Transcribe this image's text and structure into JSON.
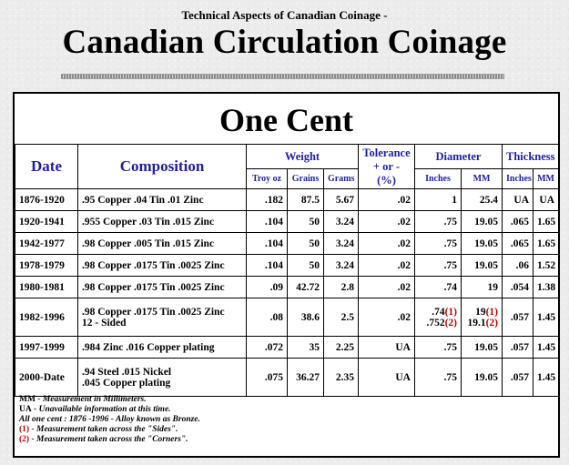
{
  "header": {
    "subtitle": "Technical Aspects of Canadian Coinage -",
    "title": "Canadian Circulation Coinage"
  },
  "table": {
    "title": "One Cent",
    "headers": {
      "date": "Date",
      "composition": "Composition",
      "weight": "Weight",
      "tolerance_1": "Tolerance",
      "tolerance_2": "+ or - (%)",
      "diameter": "Diameter",
      "thickness": "Thickness",
      "troy_oz": "Troy oz",
      "grains": "Grains",
      "grams": "Grams",
      "inches": "Inches",
      "mm": "MM",
      "th_inches": "Inches",
      "th_mm": "MM"
    },
    "rows": [
      {
        "date": "1876-1920",
        "comp1": ".95 Copper .04 Tin .01 Zinc",
        "comp2": "",
        "troy": ".182",
        "grains": "87.5",
        "grams": "5.67",
        "tol": ".02",
        "d_in1": "1",
        "d_in1_tag": "",
        "d_in2": "",
        "d_in2_tag": "",
        "d_mm1": "25.4",
        "d_mm1_tag": "",
        "d_mm2": "",
        "d_mm2_tag": "",
        "t_in": "UA",
        "t_mm": "UA"
      },
      {
        "date": "1920-1941",
        "comp1": ".955 Copper .03 Tin .015 Zinc",
        "comp2": "",
        "troy": ".104",
        "grains": "50",
        "grams": "3.24",
        "tol": ".02",
        "d_in1": ".75",
        "d_in1_tag": "",
        "d_in2": "",
        "d_in2_tag": "",
        "d_mm1": "19.05",
        "d_mm1_tag": "",
        "d_mm2": "",
        "d_mm2_tag": "",
        "t_in": ".065",
        "t_mm": "1.65"
      },
      {
        "date": "1942-1977",
        "comp1": ".98 Copper .005 Tin .015 Zinc",
        "comp2": "",
        "troy": ".104",
        "grains": "50",
        "grams": "3.24",
        "tol": ".02",
        "d_in1": ".75",
        "d_in1_tag": "",
        "d_in2": "",
        "d_in2_tag": "",
        "d_mm1": "19.05",
        "d_mm1_tag": "",
        "d_mm2": "",
        "d_mm2_tag": "",
        "t_in": ".065",
        "t_mm": "1.65"
      },
      {
        "date": "1978-1979",
        "comp1": ".98 Copper .0175 Tin .0025 Zinc",
        "comp2": "",
        "troy": ".104",
        "grains": "50",
        "grams": "3.24",
        "tol": ".02",
        "d_in1": ".75",
        "d_in1_tag": "",
        "d_in2": "",
        "d_in2_tag": "",
        "d_mm1": "19.05",
        "d_mm1_tag": "",
        "d_mm2": "",
        "d_mm2_tag": "",
        "t_in": ".06",
        "t_mm": "1.52"
      },
      {
        "date": "1980-1981",
        "comp1": ".98 Copper .0175 Tin .0025 Zinc",
        "comp2": "",
        "troy": ".09",
        "grains": "42.72",
        "grams": "2.8",
        "tol": ".02",
        "d_in1": ".74",
        "d_in1_tag": "",
        "d_in2": "",
        "d_in2_tag": "",
        "d_mm1": "19",
        "d_mm1_tag": "",
        "d_mm2": "",
        "d_mm2_tag": "",
        "t_in": ".054",
        "t_mm": "1.38"
      },
      {
        "date": "1982-1996",
        "comp1": ".98 Copper .0175 Tin .0025 Zinc",
        "comp2": "12 - Sided",
        "troy": ".08",
        "grains": "38.6",
        "grams": "2.5",
        "tol": ".02",
        "d_in1": ".74",
        "d_in1_tag": "(1)",
        "d_in2": ".752",
        "d_in2_tag": "(2)",
        "d_mm1": "19",
        "d_mm1_tag": "(1)",
        "d_mm2": "19.1",
        "d_mm2_tag": "(2)",
        "t_in": ".057",
        "t_mm": "1.45"
      },
      {
        "date": "1997-1999",
        "comp1": ".984 Zinc .016 Copper plating",
        "comp2": "",
        "troy": ".072",
        "grains": "35",
        "grams": "2.25",
        "tol": "UA",
        "d_in1": ".75",
        "d_in1_tag": "",
        "d_in2": "",
        "d_in2_tag": "",
        "d_mm1": "19.05",
        "d_mm1_tag": "",
        "d_mm2": "",
        "d_mm2_tag": "",
        "t_in": ".057",
        "t_mm": "1.45"
      },
      {
        "date": "2000-Date",
        "comp1": ".94 Steel .015 Nickel",
        "comp2": ".045 Copper plating",
        "troy": ".075",
        "grains": "36.27",
        "grams": "2.35",
        "tol": "UA",
        "d_in1": ".75",
        "d_in1_tag": "",
        "d_in2": "",
        "d_in2_tag": "",
        "d_mm1": "19.05",
        "d_mm1_tag": "",
        "d_mm2": "",
        "d_mm2_tag": "",
        "t_in": ".057",
        "t_mm": "1.45"
      }
    ]
  },
  "legend": [
    {
      "key": "MM",
      "text": " - Measurement in Millimeters.",
      "red": false
    },
    {
      "key": "UA",
      "text": " - Unavailable information at this time.",
      "red": false
    },
    {
      "key": "",
      "text": "All one cent : 1876 -1996 - Alloy known as Bronze.",
      "red": false
    },
    {
      "key": "(1)",
      "text": " - Measurement taken across the \"Sides\".",
      "red": true
    },
    {
      "key": "(2)",
      "text": " - Measurement taken across the \"Corners\".",
      "red": true
    }
  ]
}
